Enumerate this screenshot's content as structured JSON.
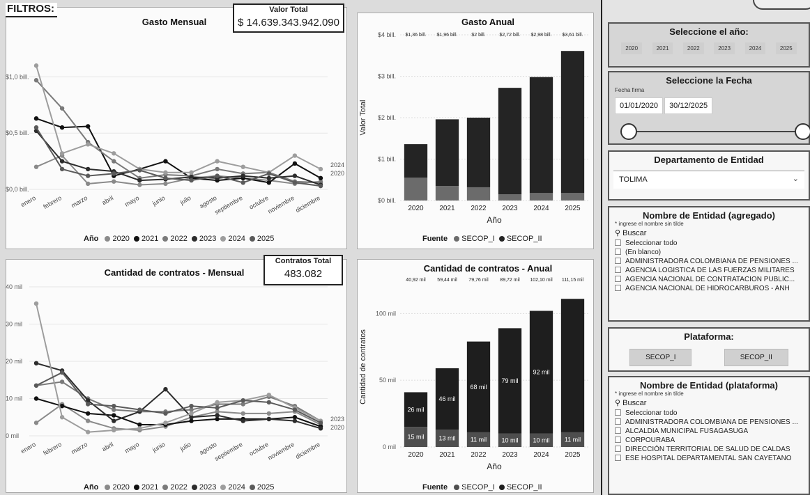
{
  "gasto_mensual": {
    "title": "Gasto Mensual",
    "kpi_label": "Valor Total",
    "kpi_value": "$ 14.639.343.942.090",
    "legend_label": "Año",
    "end_labels": [
      "2024",
      "2020"
    ],
    "chart_data": {
      "type": "line",
      "title": "Gasto Mensual",
      "categories": [
        "enero",
        "febrero",
        "marzo",
        "abril",
        "mayo",
        "junio",
        "julio",
        "agosto",
        "septiembre",
        "octubre",
        "noviembre",
        "diciembre"
      ],
      "ytick_labels": [
        "$0,0 bill.",
        "$0,5 bill.",
        "$1,0 bill."
      ],
      "yticks": [
        0,
        0.5,
        1.0
      ],
      "ylim": [
        0,
        1.25
      ],
      "series": [
        {
          "name": "2020",
          "color": "#8a8a8a",
          "values": [
            0.2,
            0.3,
            0.05,
            0.07,
            0.04,
            0.05,
            0.1,
            0.12,
            0.1,
            0.08,
            0.05,
            0.07
          ]
        },
        {
          "name": "2021",
          "color": "#111111",
          "values": [
            0.63,
            0.55,
            0.56,
            0.12,
            0.18,
            0.25,
            0.1,
            0.08,
            0.1,
            0.06,
            0.23,
            0.1
          ]
        },
        {
          "name": "2022",
          "color": "#7a7a7a",
          "values": [
            0.97,
            0.72,
            0.42,
            0.25,
            0.1,
            0.13,
            0.12,
            0.18,
            0.14,
            0.15,
            0.07,
            0.06
          ]
        },
        {
          "name": "2023",
          "color": "#2c2c2c",
          "values": [
            0.52,
            0.25,
            0.18,
            0.16,
            0.08,
            0.09,
            0.11,
            0.1,
            0.12,
            0.1,
            0.12,
            0.04
          ]
        },
        {
          "name": "2024",
          "color": "#9d9d9d",
          "values": [
            1.1,
            0.32,
            0.4,
            0.32,
            0.18,
            0.15,
            0.15,
            0.25,
            0.2,
            0.15,
            0.3,
            0.18
          ]
        },
        {
          "name": "2025",
          "color": "#5a5a5a",
          "values": [
            0.55,
            0.18,
            0.12,
            0.14,
            0.17,
            0.1,
            0.08,
            0.12,
            0.06,
            0.14,
            0.06,
            0.03
          ]
        }
      ]
    }
  },
  "gasto_anual": {
    "title": "Gasto Anual",
    "xlabel": "Año",
    "ylabel": "Valor Total",
    "legend_label": "Fuente",
    "chart_data": {
      "type": "bar",
      "title": "Gasto Anual",
      "categories": [
        "2020",
        "2021",
        "2022",
        "2023",
        "2024",
        "2025"
      ],
      "ytick_labels": [
        "$0 bill.",
        "$1 bill.",
        "$2 bill.",
        "$3 bill.",
        "$4 bill."
      ],
      "yticks": [
        0,
        1,
        2,
        3,
        4
      ],
      "ylim": [
        0,
        4
      ],
      "total_labels": [
        "$1,36 bill.",
        "$1,96 bill.",
        "$2 bill.",
        "$2,72 bill.",
        "$2,98 bill.",
        "$3,61 bill."
      ],
      "totals": [
        1.36,
        1.96,
        2.0,
        2.72,
        2.98,
        3.61
      ],
      "series": [
        {
          "name": "SECOP_I",
          "color": "#6b6b6b",
          "values": [
            0.55,
            0.35,
            0.32,
            0.15,
            0.18,
            0.18
          ]
        },
        {
          "name": "SECOP_II",
          "color": "#242424",
          "values": [
            0.81,
            1.61,
            1.68,
            2.57,
            2.8,
            3.43
          ]
        }
      ]
    }
  },
  "contratos_mensual": {
    "title": "Cantidad de contratos - Mensual",
    "kpi_label": "Contratos Total",
    "kpi_value": "483.082",
    "legend_label": "Año",
    "end_labels": [
      "2023",
      "2020"
    ],
    "chart_data": {
      "type": "line",
      "title": "Cantidad de contratos - Mensual",
      "categories": [
        "enero",
        "febrero",
        "marzo",
        "abril",
        "mayo",
        "junio",
        "julio",
        "agosto",
        "septiembre",
        "octubre",
        "noviembre",
        "diciembre"
      ],
      "ytick_labels": [
        "0 mil",
        "10 mil",
        "20 mil",
        "30 mil",
        "40 mil"
      ],
      "yticks": [
        0,
        10,
        20,
        30,
        40
      ],
      "ylim": [
        0,
        40
      ],
      "series": [
        {
          "name": "2020",
          "color": "#8a8a8a",
          "values": [
            3.5,
            8.5,
            4.0,
            2.0,
            1.5,
            2.5,
            5.0,
            6.5,
            6.0,
            6.0,
            6.5,
            3.0
          ]
        },
        {
          "name": "2021",
          "color": "#111111",
          "values": [
            10.0,
            8.0,
            6.0,
            5.5,
            3.0,
            3.0,
            4.0,
            4.5,
            4.5,
            4.5,
            5.0,
            2.5
          ]
        },
        {
          "name": "2022",
          "color": "#7a7a7a",
          "values": [
            13.5,
            14.5,
            10.0,
            7.0,
            6.5,
            6.5,
            7.0,
            8.5,
            8.5,
            10.5,
            8.0,
            4.0
          ]
        },
        {
          "name": "2023",
          "color": "#2c2c2c",
          "values": [
            19.5,
            17.5,
            9.5,
            4.0,
            6.5,
            12.5,
            5.0,
            5.5,
            4.0,
            4.5,
            4.0,
            2.0
          ]
        },
        {
          "name": "2024",
          "color": "#9d9d9d",
          "values": [
            35.5,
            5.0,
            1.0,
            1.5,
            2.0,
            3.5,
            6.0,
            9.0,
            9.5,
            11.0,
            7.5,
            4.0
          ]
        },
        {
          "name": "2025",
          "color": "#5a5a5a",
          "values": [
            13.5,
            17.0,
            8.5,
            8.0,
            7.0,
            6.0,
            8.0,
            7.5,
            9.5,
            9.0,
            7.0,
            3.5
          ]
        }
      ]
    }
  },
  "contratos_anual": {
    "title": "Cantidad de contratos - Anual",
    "xlabel": "Año",
    "ylabel": "Cantidad de contratos",
    "legend_label": "Fuente",
    "chart_data": {
      "type": "bar",
      "title": "Cantidad de contratos - Anual",
      "categories": [
        "2020",
        "2021",
        "2022",
        "2023",
        "2024",
        "2025"
      ],
      "ytick_labels": [
        "0 mil",
        "50 mil",
        "100 mil"
      ],
      "yticks": [
        0,
        50,
        100
      ],
      "ylim": [
        0,
        120
      ],
      "total_labels": [
        "40,92 mil",
        "59,44 mil",
        "79,76 mil",
        "89,72 mil",
        "102,10 mil",
        "111,15 mil"
      ],
      "totals": [
        40.92,
        59.44,
        79.76,
        89.72,
        102.1,
        111.15
      ],
      "series": [
        {
          "name": "SECOP_I",
          "color": "#4e4e4e",
          "values": [
            15,
            13,
            11,
            10,
            10,
            11
          ],
          "labels": [
            "15 mil",
            "13 mil",
            "11 mil",
            "10 mil",
            "10 mil",
            "11 mil"
          ]
        },
        {
          "name": "SECOP_II",
          "color": "#1e1e1e",
          "values": [
            26,
            46,
            68,
            79,
            92,
            100
          ],
          "labels": [
            "26 mil",
            "46 mil",
            "68 mil",
            "79 mil",
            "92 mil",
            ""
          ]
        }
      ]
    }
  },
  "filters": {
    "title": "FILTROS:",
    "year": {
      "title": "Seleccione el año:",
      "options": [
        "2020",
        "2021",
        "2022",
        "2023",
        "2024",
        "2025"
      ]
    },
    "date": {
      "title": "Seleccione la Fecha",
      "field_label": "Fecha firma",
      "start": "01/01/2020",
      "end": "30/12/2025"
    },
    "department": {
      "title": "Departamento de Entidad",
      "value": "TOLIMA"
    },
    "entity_agg": {
      "title": "Nombre de Entidad (agregado)",
      "hint": "* ingrese el nombre sin tilde",
      "search_placeholder": "Buscar",
      "items": [
        "Seleccionar todo",
        "(En blanco)",
        "ADMINISTRADORA COLOMBIANA DE PENSIONES ...",
        "AGENCIA LOGISTICA DE LAS FUERZAS MILITARES",
        "AGENCIA NACIONAL DE CONTRATACION PUBLIC...",
        "AGENCIA NACIONAL DE HIDROCARBUROS - ANH"
      ]
    },
    "platform": {
      "title": "Plataforma:",
      "options": [
        "SECOP_I",
        "SECOP_II"
      ]
    },
    "entity_plat": {
      "title": "Nombre de Entidad (plataforma)",
      "hint": "* ingrese el nombre sin tilde",
      "search_placeholder": "Buscar",
      "items": [
        "Seleccionar todo",
        "ADMINISTRADORA COLOMBIANA DE PENSIONES ...",
        "ALCALDIA MUNICIPAL FUSAGASUGA",
        "CORPOURABA",
        "DIRECCIÓN TERRITORIAL DE SALUD DE CALDAS",
        "ESE HOSPITAL DEPARTAMENTAL SAN CAYETANO"
      ]
    }
  }
}
